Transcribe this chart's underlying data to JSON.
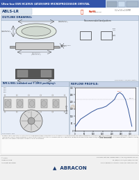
{
  "title": "Ultra-low ESR HC49US (AT49)SMD MICROPROCESSOR CRYSTAL",
  "part_number": "ABLS-LR",
  "bg_color": "#ffffff",
  "header_bg": "#3355aa",
  "header_text_color": "#ffffff",
  "section1_title": "OUTLINE DRAWING:",
  "section2_title": "TAPE & REEL (standard and -T (SMD) packaging):",
  "section3_title": "REFLOW PROFILE:",
  "section_header_bg": "#c8d4e8",
  "section_bg": "#e8eef8",
  "border_color": "#aabbcc",
  "text_color": "#333333",
  "dim_color": "#555555",
  "watermark_color": "#d0c0b0",
  "footer_bg": "#f0f0f0",
  "warning_bg": "#fafafa",
  "rohs_red": "#cc2200",
  "graph_line_color": "#335599",
  "graph_fill_color": "#99aacc"
}
